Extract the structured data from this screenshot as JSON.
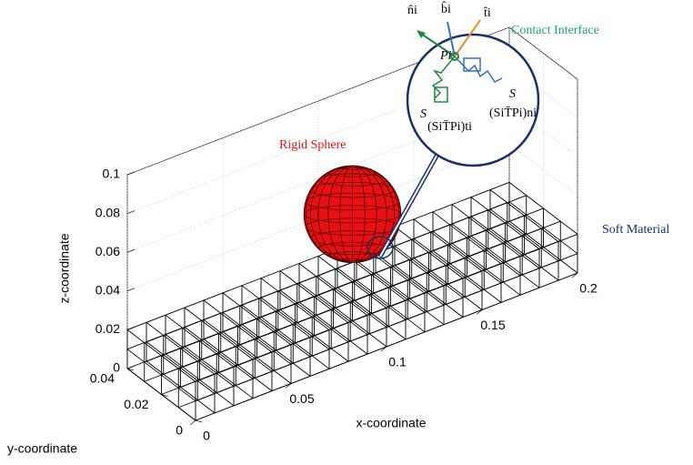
{
  "chart_data": {
    "type": "mesh3d",
    "xlabel": "x-coordinate",
    "ylabel": "y-coordinate",
    "zlabel": "z-coordinate",
    "xlim": [
      0,
      0.2
    ],
    "ylim": [
      0,
      0.04
    ],
    "zlim": [
      0,
      0.1
    ],
    "xticks": [
      0,
      0.05,
      0.1,
      0.15,
      0.2
    ],
    "yticks": [
      0,
      0.02,
      0.04
    ],
    "zticks": [
      0,
      0.02,
      0.04,
      0.06,
      0.08,
      0.1
    ],
    "grid": true,
    "soft_material": {
      "label": "Soft Material",
      "color": "#1a2f6b",
      "xlim": [
        0,
        0.2
      ],
      "ylim": [
        0,
        0.04
      ],
      "zlim": [
        0,
        0.02
      ],
      "divisions": [
        20,
        4,
        2
      ]
    },
    "sphere": {
      "label": "Rigid Sphere",
      "color": "#e81010",
      "center": [
        0.1,
        0.02,
        0.055
      ],
      "radius": 0.025
    },
    "contact_interface": {
      "label": "Contact Interface",
      "color": "#1aa86a",
      "labels": [
        "n̂i",
        "b̂i",
        "t̂i",
        "Pi",
        "S",
        "S",
        "(SiT̄Pi)ti",
        "(SiT̄Pi)ni"
      ]
    }
  }
}
